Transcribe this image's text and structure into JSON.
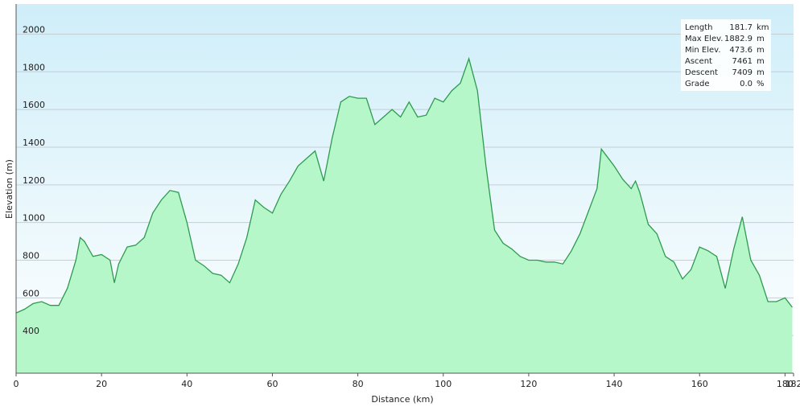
{
  "chart_data": {
    "type": "area",
    "xlabel": "Distance  (km)",
    "ylabel": "Elevation (m)",
    "x": [
      0,
      2,
      4,
      6,
      8,
      10,
      12,
      14,
      15,
      16,
      18,
      20,
      22,
      23,
      24,
      26,
      28,
      30,
      32,
      34,
      36,
      38,
      40,
      42,
      44,
      46,
      48,
      50,
      52,
      54,
      56,
      58,
      60,
      62,
      64,
      66,
      68,
      70,
      72,
      74,
      76,
      78,
      80,
      82,
      84,
      86,
      88,
      90,
      92,
      94,
      96,
      98,
      100,
      102,
      104,
      106,
      108,
      110,
      112,
      114,
      116,
      118,
      120,
      122,
      124,
      126,
      128,
      130,
      132,
      134,
      136,
      137,
      138,
      140,
      142,
      144,
      145,
      146,
      148,
      150,
      152,
      154,
      156,
      158,
      160,
      162,
      164,
      166,
      168,
      170,
      172,
      174,
      176,
      178,
      180,
      181.7
    ],
    "values": [
      520,
      540,
      570,
      580,
      560,
      560,
      650,
      800,
      920,
      900,
      820,
      830,
      800,
      680,
      780,
      870,
      880,
      920,
      1050,
      1120,
      1170,
      1160,
      1000,
      800,
      770,
      730,
      720,
      680,
      780,
      920,
      1120,
      1080,
      1050,
      1150,
      1220,
      1300,
      1340,
      1380,
      1220,
      1450,
      1640,
      1670,
      1660,
      1660,
      1520,
      1560,
      1600,
      1560,
      1640,
      1560,
      1570,
      1660,
      1640,
      1700,
      1740,
      1870,
      1700,
      1300,
      960,
      890,
      860,
      820,
      800,
      800,
      790,
      790,
      780,
      850,
      940,
      1060,
      1180,
      1390,
      1360,
      1300,
      1230,
      1180,
      1220,
      1160,
      990,
      940,
      820,
      790,
      700,
      750,
      870,
      850,
      820,
      650,
      860,
      1030,
      800,
      720,
      580,
      580,
      600,
      550
    ],
    "fill": "#b6f7c9",
    "color": "#2f9a4f",
    "xlim": [
      0,
      182
    ],
    "ylim": [
      200,
      2160
    ],
    "xticks": [
      0,
      20,
      40,
      60,
      80,
      100,
      120,
      140,
      160,
      180,
      182
    ],
    "yticks": [
      400,
      600,
      800,
      1000,
      1200,
      1400,
      1600,
      1800,
      2000
    ],
    "grid": true,
    "stats": [
      [
        "Length",
        "181.7",
        "km"
      ],
      [
        "Max Elev.",
        "1882.9",
        "m"
      ],
      [
        "Min Elev.",
        "473.6",
        "m"
      ],
      [
        "Ascent",
        "7461",
        "m"
      ],
      [
        "Descent",
        "7409",
        "m"
      ],
      [
        "Grade",
        "0.0",
        "%"
      ]
    ]
  }
}
